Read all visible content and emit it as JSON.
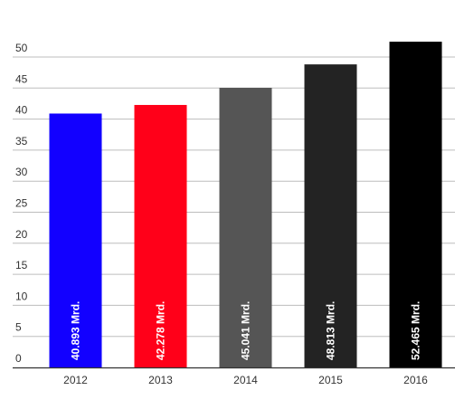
{
  "chart_data": {
    "type": "bar",
    "categories": [
      "2012",
      "2013",
      "2014",
      "2015",
      "2016"
    ],
    "values": [
      40.893,
      42.278,
      45.041,
      48.813,
      52.465
    ],
    "data_labels": [
      "40.893 Mrd.",
      "42.278 Mrd.",
      "45.041 Mrd.",
      "48.813 Mrd.",
      "52.465 Mrd."
    ],
    "bar_colors": [
      "#1200ff",
      "#ff0019",
      "#555555",
      "#232323",
      "#000000"
    ],
    "title": "",
    "xlabel": "",
    "ylabel": "",
    "ylim": [
      0,
      50
    ],
    "yticks": [
      "0",
      "5",
      "10",
      "15",
      "20",
      "25",
      "30",
      "35",
      "40",
      "45",
      "50"
    ],
    "grid": true,
    "legend": "none"
  }
}
